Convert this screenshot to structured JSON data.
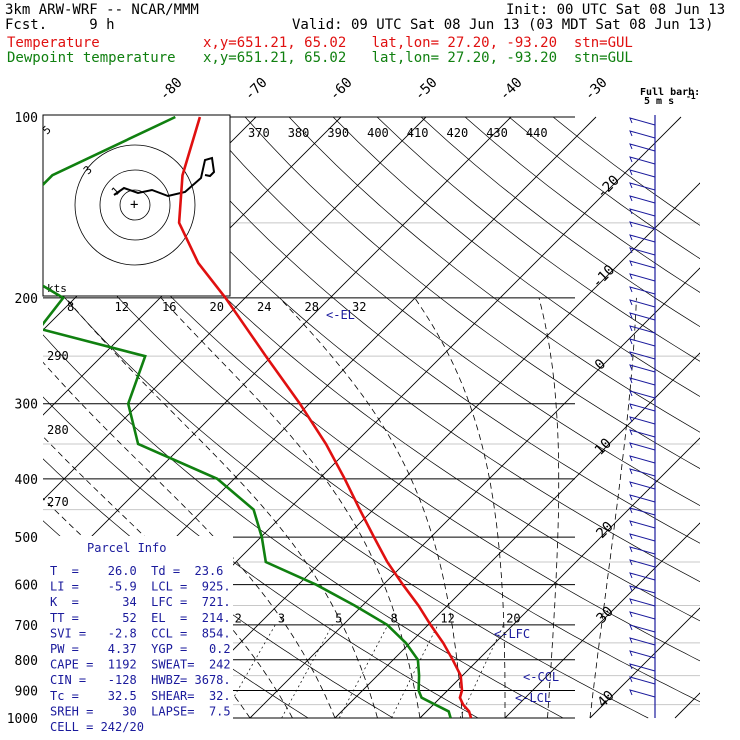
{
  "header": {
    "model": "3km ARW-WRF -- NCAR/MMM",
    "init": "Init: 00 UTC Sat 08 Jun 13",
    "fcst": "Fcst.     9 h",
    "valid": "Valid: 09 UTC Sat 08 Jun 13 (03 MDT Sat 08 Jun 13)",
    "temp_label": "Temperature",
    "temp_loc": "x,y=651.21, 65.02   lat,lon= 27.20, -93.20  stn=GUL",
    "dew_label": "Dewpoint temperature",
    "dew_loc": "x,y=651.21, 65.02   lat,lon= 27.20, -93.20  stn=GUL"
  },
  "colors": {
    "temperature": "#e01010",
    "dewpoint": "#108010",
    "parcel_text": "#1a1a9c",
    "axes": "#000000"
  },
  "chart_data": {
    "type": "line",
    "plot": "skew-T log-p diagram",
    "ylim": [
      1000,
      100
    ],
    "y_scale": "log",
    "pressure_ticks": [
      "100",
      "200",
      "300",
      "400",
      "500",
      "600",
      "700",
      "800",
      "900",
      "1000"
    ],
    "isotherm_labels": [
      "-80",
      "-70",
      "-60",
      "-50",
      "-40",
      "-30",
      "-20",
      "-10",
      "0",
      "10",
      "20",
      "30",
      "40"
    ],
    "theta_labels": [
      "370",
      "380",
      "390",
      "400",
      "410",
      "420",
      "430",
      "440"
    ],
    "dry_adiabat_labels": [
      "290",
      "280",
      "270"
    ],
    "mixing_ratio_labels": [
      "2",
      "3",
      "5",
      "8",
      "12",
      "20"
    ],
    "hodograph_speed_labels": [
      "8",
      "12",
      "16",
      "20",
      "24",
      "28",
      "32"
    ],
    "hodograph_ring_labels": [
      "5",
      "3",
      "1"
    ],
    "hodograph_units": "kts",
    "wind_legend": {
      "title": "Full barb:",
      "value": "5 m s",
      "exponent": "-1"
    },
    "levels": {
      "lfc_label": "<-LFC",
      "ccl_label": "<-CCL",
      "lcl_label": "<-LCL",
      "el_label": "<-EL"
    },
    "series": [
      {
        "name": "Temperature",
        "p": [
          1000,
          975,
          950,
          925,
          900,
          850,
          800,
          750,
          700,
          650,
          600,
          550,
          500,
          450,
          400,
          350,
          300,
          250,
          200,
          175,
          150,
          125,
          100
        ],
        "t": [
          26.0,
          25.0,
          23.5,
          22.3,
          21.7,
          19.8,
          17.0,
          13.9,
          10.3,
          6.6,
          2.3,
          -2.2,
          -6.7,
          -11.6,
          -17.0,
          -23.3,
          -31.1,
          -40.7,
          -52.3,
          -59.6,
          -66.6,
          -71.8,
          -76.6
        ]
      },
      {
        "name": "Dewpoint temperature",
        "p": [
          1000,
          975,
          950,
          925,
          900,
          850,
          800,
          750,
          700,
          650,
          600,
          550,
          500,
          450,
          400,
          350,
          300,
          250,
          225,
          200,
          175,
          150,
          125,
          100
        ],
        "t": [
          23.6,
          22.6,
          20.2,
          17.8,
          16.6,
          14.9,
          12.9,
          9.5,
          5.2,
          -0.9,
          -7.9,
          -16.5,
          -19.9,
          -24.1,
          -32.0,
          -45.4,
          -51.3,
          -54.9,
          -70.6,
          -71.4,
          -82.4,
          -87.1,
          -87.1,
          -79.5
        ]
      }
    ],
    "parcel_info": {
      "title": "Parcel Info",
      "rows": [
        "T  =    26.0  Td =  23.6",
        "LI =    -5.9  LCL =  925.",
        "K  =      34  LFC =  721.",
        "TT =      52  EL  =  214.",
        "SVI =   -2.8  CCL =  854.",
        "PW =    4.37  YGP =   0.2",
        "CAPE =  1192  SWEAT=  242",
        "CIN =   -128  HWBZ= 3678.",
        "Tc =    32.5  SHEAR=  32.",
        "SREH =    30  LAPSE=  7.5",
        "CELL = 242/20"
      ]
    }
  }
}
